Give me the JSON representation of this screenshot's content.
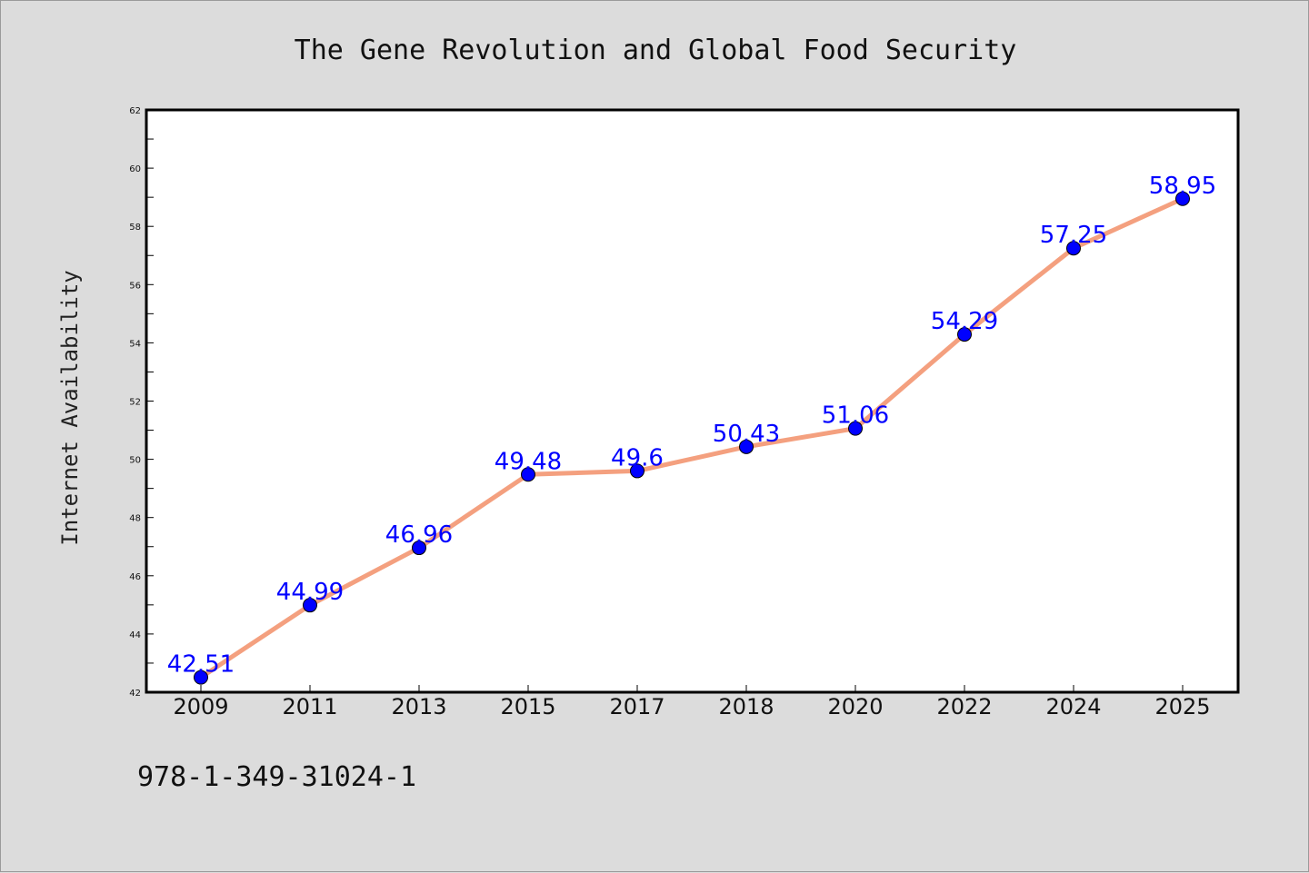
{
  "chart_data": {
    "type": "line",
    "title": "The Gene Revolution and Global Food Security",
    "xlabel": "",
    "ylabel": "Internet Availability",
    "categories": [
      "2009",
      "2011",
      "2013",
      "2015",
      "2017",
      "2018",
      "2020",
      "2022",
      "2024",
      "2025"
    ],
    "series": [
      {
        "values": [
          42.51,
          44.99,
          46.96,
          49.48,
          49.6,
          50.43,
          51.06,
          54.29,
          57.25,
          58.95
        ],
        "data_labels": [
          "42.51",
          "44.99",
          "46.96",
          "49.48",
          "49.6",
          "50.43",
          "51.06",
          "54.29",
          "57.25",
          "58.95"
        ],
        "line_color": "#f4a07f",
        "marker_color": "#0000ff"
      }
    ],
    "ylim": [
      42,
      62
    ],
    "yticks": [
      42,
      44,
      46,
      48,
      50,
      52,
      54,
      56,
      58,
      60,
      62
    ],
    "ytick_labels": [
      "42",
      "44",
      "46",
      "48",
      "50",
      "52",
      "54",
      "56",
      "58",
      "60",
      "62"
    ],
    "grid": false,
    "legend": "none"
  },
  "footer": {
    "isbn": "978-1-349-31024-1"
  },
  "colors": {
    "background": "#dcdcdc",
    "plot_background": "#ffffff",
    "label_color": "#0000ff"
  }
}
